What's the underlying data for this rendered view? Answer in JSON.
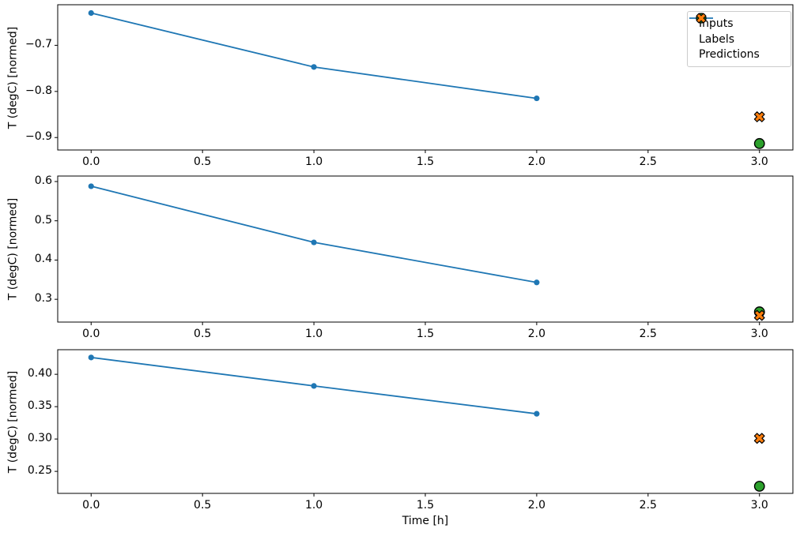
{
  "figure": {
    "background": "#ffffff",
    "xlabel": "Time [h]"
  },
  "colors": {
    "inputs": "#1f77b4",
    "labels": "#2ca02c",
    "predictions": "#ff7f0e",
    "marker_edge": "#000000",
    "spine": "#000000",
    "legend_border": "#cccccc"
  },
  "legend": {
    "position": "upper right",
    "entries": [
      {
        "label": "Inputs",
        "marker": "line-dot",
        "color": "#1f77b4"
      },
      {
        "label": "Labels",
        "marker": "circle",
        "color": "#2ca02c",
        "edge": "#000000"
      },
      {
        "label": "Predictions",
        "marker": "x-thick",
        "color": "#ff7f0e",
        "edge": "#000000"
      }
    ]
  },
  "chart_data": [
    {
      "type": "line",
      "title": "",
      "xlabel": "",
      "ylabel": "T (degC) [normed]",
      "grid": false,
      "legend_visible": true,
      "xlim": [
        -0.15,
        3.15
      ],
      "ylim": [
        -0.927,
        -0.612
      ],
      "xtick_values": [
        0.0,
        0.5,
        1.0,
        1.5,
        2.0,
        2.5,
        3.0
      ],
      "xtick_labels": [
        "0.0",
        "0.5",
        "1.0",
        "1.5",
        "2.0",
        "2.5",
        "3.0"
      ],
      "ytick_values": [
        -0.7,
        -0.8,
        -0.9
      ],
      "ytick_labels": [
        "−0.7",
        "−0.8",
        "−0.9"
      ],
      "series": [
        {
          "name": "Inputs",
          "kind": "line",
          "color": "#1f77b4",
          "x": [
            0.0,
            1.0,
            2.0
          ],
          "y": [
            -0.63,
            -0.747,
            -0.815
          ]
        },
        {
          "name": "Labels",
          "kind": "scatter-circle",
          "color": "#2ca02c",
          "x": [
            3.0
          ],
          "y": [
            -0.913
          ]
        },
        {
          "name": "Predictions",
          "kind": "scatter-x",
          "color": "#ff7f0e",
          "x": [
            3.0
          ],
          "y": [
            -0.855
          ]
        }
      ]
    },
    {
      "type": "line",
      "title": "",
      "xlabel": "",
      "ylabel": "T (degC) [normed]",
      "grid": false,
      "legend_visible": false,
      "xlim": [
        -0.15,
        3.15
      ],
      "ylim": [
        0.242,
        0.614
      ],
      "xtick_values": [
        0.0,
        0.5,
        1.0,
        1.5,
        2.0,
        2.5,
        3.0
      ],
      "xtick_labels": [
        "0.0",
        "0.5",
        "1.0",
        "1.5",
        "2.0",
        "2.5",
        "3.0"
      ],
      "ytick_values": [
        0.6,
        0.5,
        0.4,
        0.3
      ],
      "ytick_labels": [
        "0.6",
        "0.5",
        "0.4",
        "0.3"
      ],
      "series": [
        {
          "name": "Inputs",
          "kind": "line",
          "color": "#1f77b4",
          "x": [
            0.0,
            1.0,
            2.0
          ],
          "y": [
            0.588,
            0.445,
            0.343
          ]
        },
        {
          "name": "Labels",
          "kind": "scatter-circle",
          "color": "#2ca02c",
          "x": [
            3.0
          ],
          "y": [
            0.268
          ]
        },
        {
          "name": "Predictions",
          "kind": "scatter-x",
          "color": "#ff7f0e",
          "x": [
            3.0
          ],
          "y": [
            0.259
          ]
        }
      ]
    },
    {
      "type": "line",
      "title": "",
      "xlabel": "Time [h]",
      "ylabel": "T (degC) [normed]",
      "grid": false,
      "legend_visible": false,
      "xlim": [
        -0.15,
        3.15
      ],
      "ylim": [
        0.216,
        0.438
      ],
      "xtick_values": [
        0.0,
        0.5,
        1.0,
        1.5,
        2.0,
        2.5,
        3.0
      ],
      "xtick_labels": [
        "0.0",
        "0.5",
        "1.0",
        "1.5",
        "2.0",
        "2.5",
        "3.0"
      ],
      "ytick_values": [
        0.4,
        0.35,
        0.3,
        0.25
      ],
      "ytick_labels": [
        "0.40",
        "0.35",
        "0.30",
        "0.25"
      ],
      "series": [
        {
          "name": "Inputs",
          "kind": "line",
          "color": "#1f77b4",
          "x": [
            0.0,
            1.0,
            2.0
          ],
          "y": [
            0.426,
            0.382,
            0.339
          ]
        },
        {
          "name": "Labels",
          "kind": "scatter-circle",
          "color": "#2ca02c",
          "x": [
            3.0
          ],
          "y": [
            0.227
          ]
        },
        {
          "name": "Predictions",
          "kind": "scatter-x",
          "color": "#ff7f0e",
          "x": [
            3.0
          ],
          "y": [
            0.301
          ]
        }
      ]
    }
  ]
}
